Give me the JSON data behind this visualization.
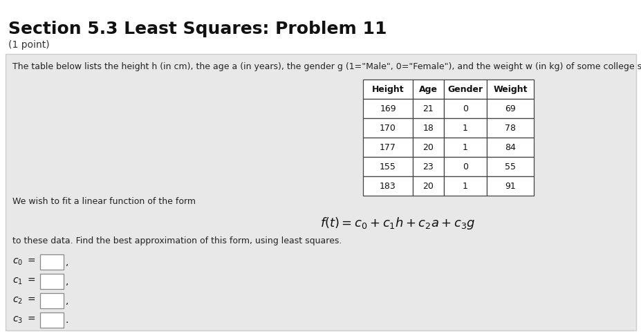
{
  "title": "Section 5.3 Least Squares: Problem 11",
  "subtitle": "(1 point)",
  "white_bg": "#ffffff",
  "box_bg": "#e8e8e8",
  "box_border": "#cccccc",
  "description": "The table below lists the height h (in cm), the age a (in years), the gender g (1=\"Male\", 0=\"Female\"), and the weight w (in kg) of some college students.",
  "table_headers": [
    "Height",
    "Age",
    "Gender",
    "Weight"
  ],
  "table_data": [
    [
      169,
      21,
      0,
      69
    ],
    [
      170,
      18,
      1,
      78
    ],
    [
      177,
      20,
      1,
      84
    ],
    [
      155,
      23,
      0,
      55
    ],
    [
      183,
      20,
      1,
      91
    ]
  ],
  "linear_form_intro": "We wish to fit a linear function of the form",
  "approx_text": "to these data. Find the best approximation of this form, using least squares.",
  "title_fontsize": 18,
  "subtitle_fontsize": 10,
  "body_fontsize": 9,
  "table_fontsize": 9,
  "formula_fontsize": 13
}
